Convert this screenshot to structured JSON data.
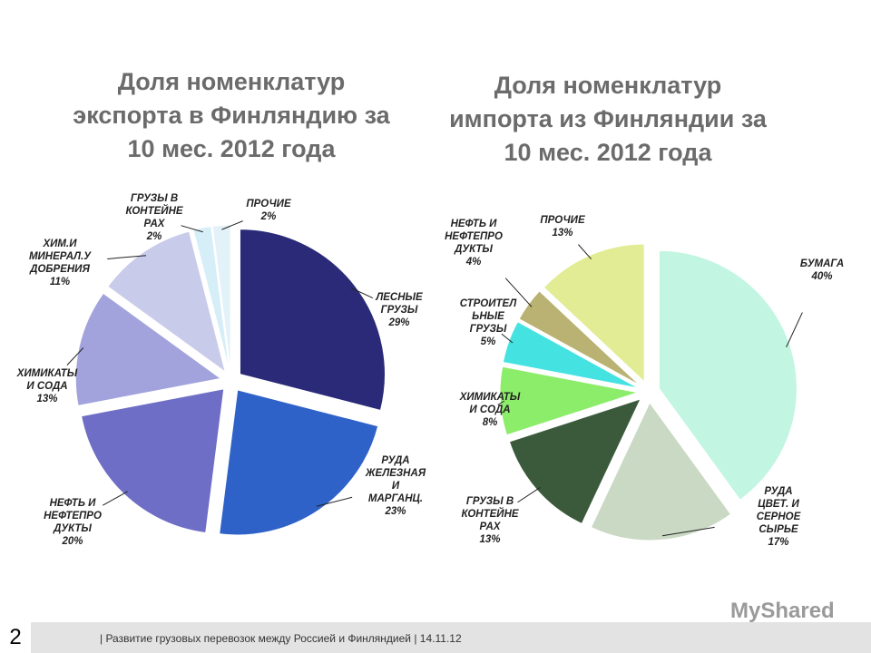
{
  "chart_data": [
    {
      "type": "pie",
      "title": "Доля номенклатур\nэкспорта в Финляндию за\n10 мес. 2012 года",
      "categories": [
        "ЛЕСНЫЕ\nГРУЗЫ",
        "РУДА\nЖЕЛЕЗНАЯ\nИ\nМАРГАНЦ.",
        "НЕФТЬ И\nНЕФТЕПРО\nДУКТЫ",
        "ХИМИКАТЫ\nИ СОДА",
        "ХИМ.И\nМИНЕРАЛ.У\nДОБРЕНИЯ",
        "ГРУЗЫ В\nКОНТЕЙНЕ\nРАХ",
        "ПРОЧИЕ"
      ],
      "values": [
        29,
        23,
        20,
        13,
        11,
        2,
        2
      ],
      "value_labels": [
        "29%",
        "23%",
        "20%",
        "13%",
        "11%",
        "2%",
        "2%"
      ],
      "colors": [
        "#2a2a78",
        "#2f62c8",
        "#6e6ec6",
        "#a2a3dc",
        "#c9cbea",
        "#d6eef8",
        "#e2f2f8"
      ]
    },
    {
      "type": "pie",
      "title": "Доля номенклатур\nимпорта из Финляндии за\n10 мес. 2012 года",
      "categories": [
        "БУМАГА",
        "РУДА\nЦВЕТ. И\nСЕРНОЕ\nСЫРЬЕ",
        "ГРУЗЫ В\nКОНТЕЙНЕ\nРАХ",
        "ХИМИКАТЫ\nИ СОДА",
        "СТРОИТЕЛ\nЬНЫЕ\nГРУЗЫ",
        "НЕФТЬ И\nНЕФТЕПРО\nДУКТЫ",
        "ПРОЧИЕ"
      ],
      "values": [
        40,
        17,
        13,
        8,
        5,
        4,
        13
      ],
      "value_labels": [
        "40%",
        "17%",
        "13%",
        "8%",
        "5%",
        "4%",
        "13%"
      ],
      "colors": [
        "#c2f5e2",
        "#cad9c4",
        "#3b5a3b",
        "#8ced6a",
        "#45e2e2",
        "#b9b272",
        "#e2ec94"
      ]
    }
  ],
  "footer": {
    "page": "2",
    "text": "| Развитие грузовых перевозок между Россией и Финляндией  | 14.11.12",
    "watermark": "MyShared"
  }
}
